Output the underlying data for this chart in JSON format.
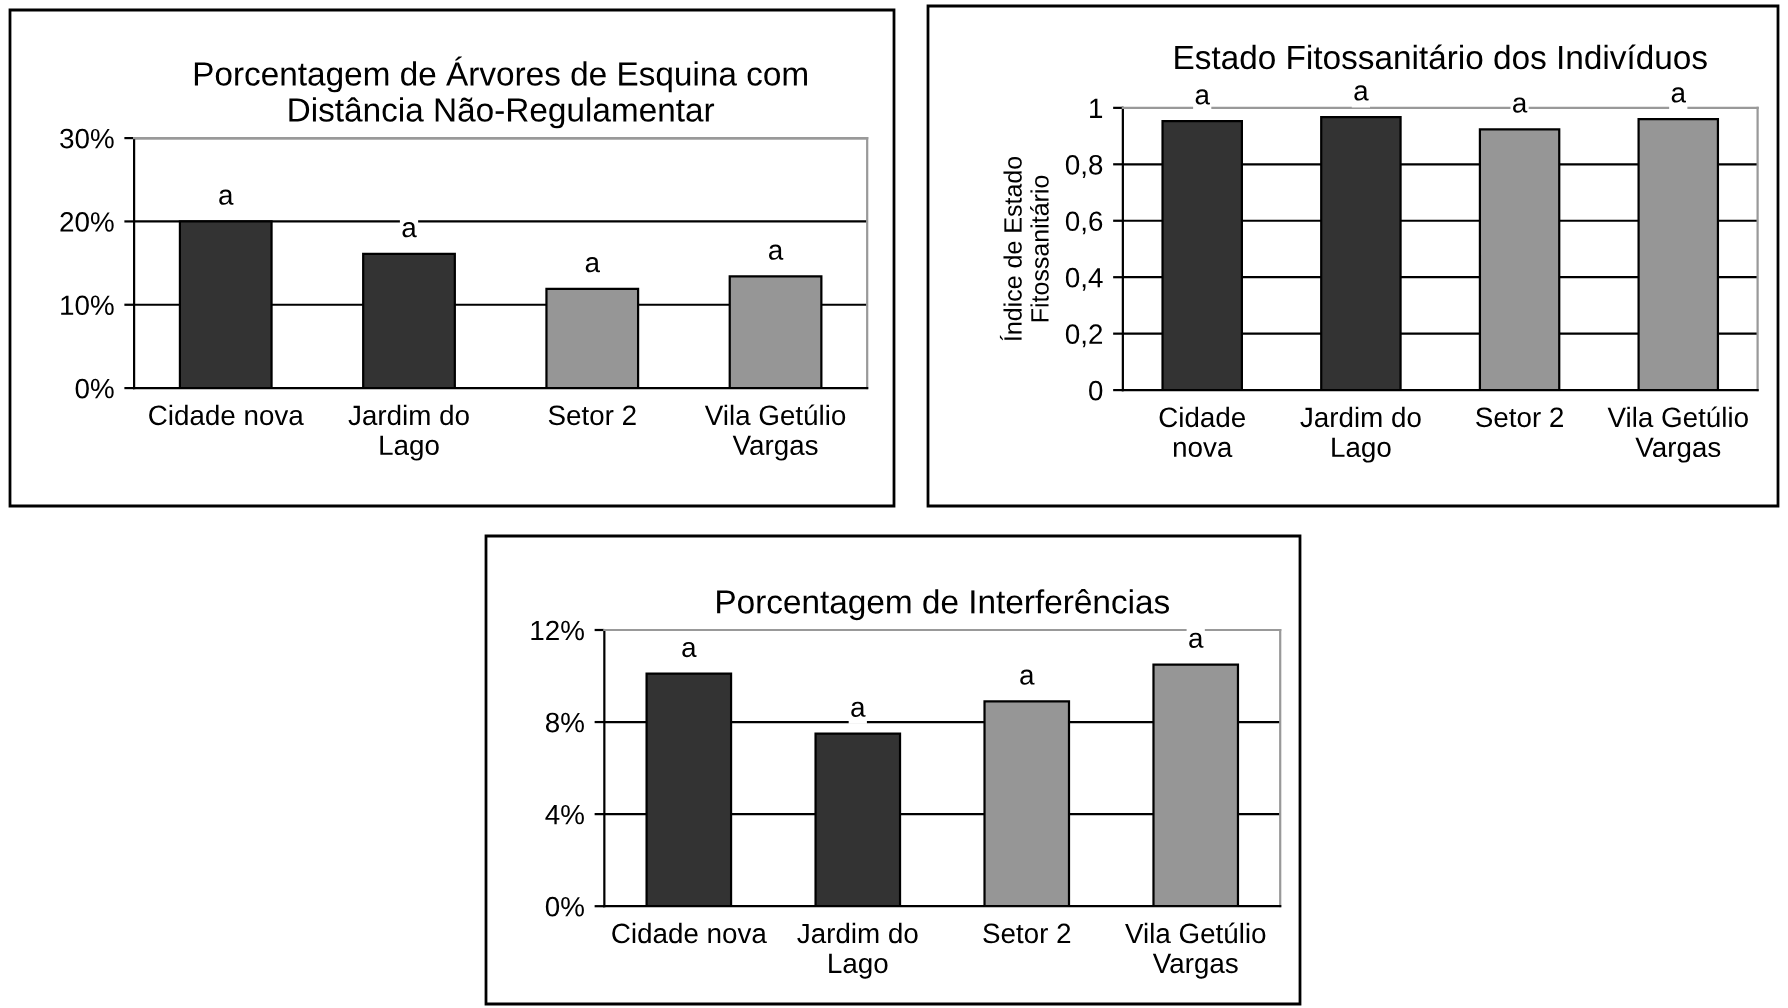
{
  "chart_data": [
    {
      "type": "bar",
      "title": "Porcentagem de Árvores de Esquina com\nDistância Não-Regulamentar",
      "categories": [
        "Cidade nova",
        "Jardim do\nLago",
        "Setor 2",
        "Vila Getúlio\nVargas"
      ],
      "values": [
        20,
        16.1,
        11.9,
        13.4
      ],
      "colors": [
        "#333333",
        "#333333",
        "#969696",
        "#969696"
      ],
      "value_labels": [
        "a",
        "a",
        "a",
        "a"
      ],
      "ylim": [
        0,
        30
      ],
      "yticks": [
        {
          "value": 0,
          "label": "0%"
        },
        {
          "value": 10,
          "label": "10%"
        },
        {
          "value": 20,
          "label": "20%"
        },
        {
          "value": 30,
          "label": "30%"
        }
      ],
      "grid": "y"
    },
    {
      "type": "bar",
      "title": "Estado Fitossanitário dos Indivíduos",
      "ylabel": "Índice de Estado\nFitossanitário",
      "categories": [
        "Cidade\nnova",
        "Jardim do\nLago",
        "Setor 2",
        "Vila Getúlio\nVargas"
      ],
      "values": [
        0.953,
        0.967,
        0.924,
        0.96
      ],
      "colors": [
        "#333333",
        "#333333",
        "#969696",
        "#969696"
      ],
      "value_labels": [
        "a",
        "a",
        "a",
        "a"
      ],
      "ylim": [
        0,
        1
      ],
      "yticks": [
        0,
        {
          "value": 0.2,
          "label": "0,2"
        },
        {
          "value": 0.4,
          "label": "0,4"
        },
        {
          "value": 0.6,
          "label": "0,6"
        },
        {
          "value": 0.8,
          "label": "0,8"
        },
        1
      ],
      "grid": "y"
    },
    {
      "type": "bar",
      "title": "Porcentagem de Interferências",
      "categories": [
        "Cidade nova",
        "Jardim do\nLago",
        "Setor 2",
        "Vila Getúlio\nVargas"
      ],
      "values": [
        10.1,
        7.5,
        8.9,
        10.5
      ],
      "colors": [
        "#333333",
        "#333333",
        "#969696",
        "#969696"
      ],
      "value_labels": [
        "a",
        "a",
        "a",
        "a"
      ],
      "ylim": [
        0,
        12
      ],
      "yticks": [
        {
          "value": 0,
          "label": "0%"
        },
        {
          "value": 4,
          "label": "4%"
        },
        {
          "value": 8,
          "label": "8%"
        },
        {
          "value": 12,
          "label": "12%"
        }
      ],
      "grid": "y"
    }
  ]
}
